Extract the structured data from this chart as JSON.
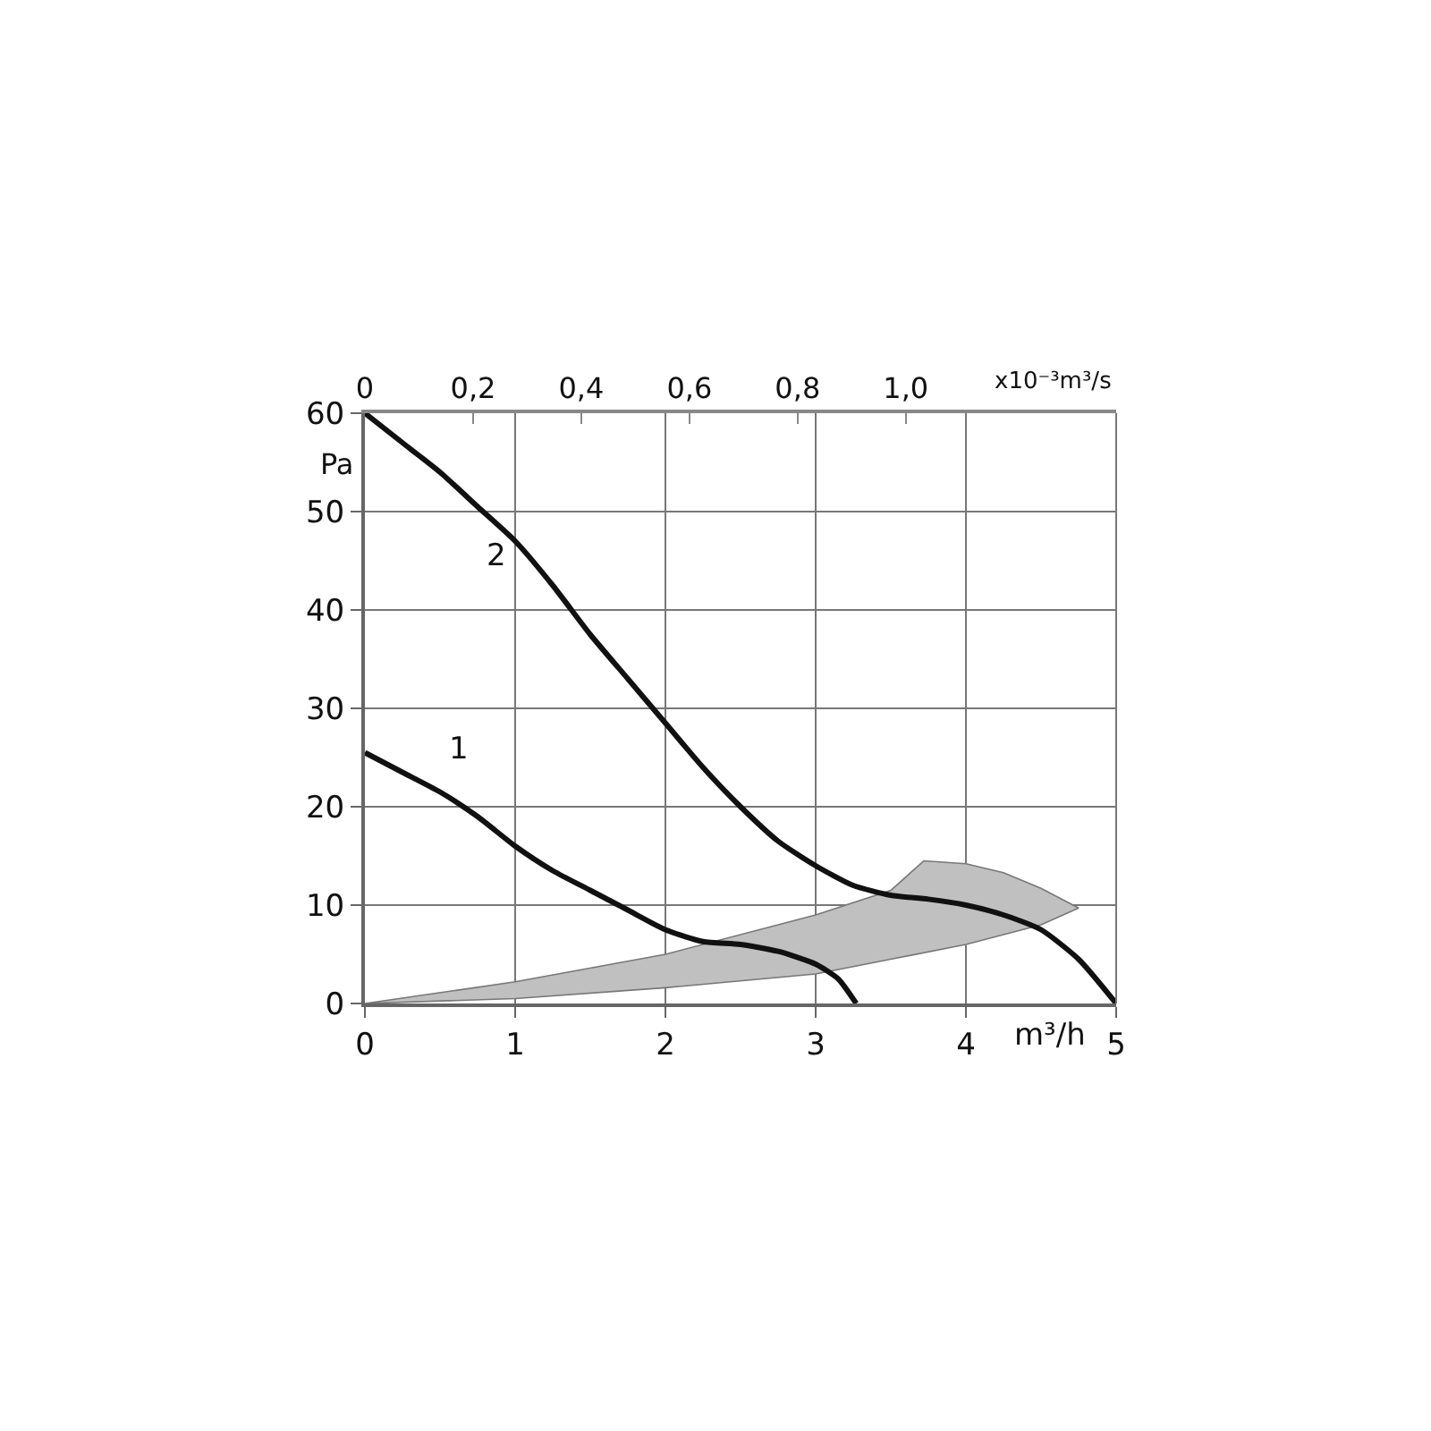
{
  "chart_data": {
    "type": "line",
    "xlabel": "m³/h",
    "ylabel": "Pa",
    "x2label": "x10⁻³m³/s",
    "xlim": [
      0,
      5
    ],
    "xticks": [
      0,
      1,
      2,
      3,
      4,
      5
    ],
    "ylim": [
      0,
      60
    ],
    "yticks": [
      0,
      10,
      20,
      30,
      40,
      50,
      60
    ],
    "x2lim": [
      0,
      1.389
    ],
    "x2ticks": [
      0,
      {
        "value": 0.2,
        "label": "0,2"
      },
      {
        "value": 0.4,
        "label": "0,4"
      },
      {
        "value": 0.6,
        "label": "0,6"
      },
      {
        "value": 0.8,
        "label": "0,8"
      },
      {
        "value": 1.0,
        "label": "1,0"
      }
    ],
    "grid": true,
    "legend": false,
    "marker": "none",
    "line_style": "solid",
    "series": [
      {
        "type": "area",
        "color": "#c0c0c0",
        "x": [
          0,
          1,
          2,
          3,
          3.5,
          3.72,
          4,
          4.25,
          4.5,
          4.75,
          4.5,
          4,
          3.5,
          3,
          2,
          1,
          0
        ],
        "values": [
          0,
          2.2,
          5,
          9,
          11.5,
          14.5,
          14.2,
          13.3,
          11.7,
          9.7,
          8,
          6,
          4.5,
          3,
          1.6,
          0.5,
          0
        ]
      },
      {
        "name": "1",
        "color": "#111111",
        "x": [
          0,
          0.25,
          0.5,
          0.75,
          1,
          1.25,
          1.5,
          1.75,
          2,
          2.25,
          2.5,
          2.75,
          3,
          3.15,
          3.27
        ],
        "values": [
          25.5,
          23.5,
          21.5,
          19,
          16,
          13.5,
          11.5,
          9.5,
          7.5,
          6.3,
          6,
          5.3,
          4,
          2.5,
          0
        ]
      },
      {
        "name": "2",
        "color": "#111111",
        "x": [
          0,
          0.25,
          0.5,
          0.75,
          1,
          1.25,
          1.5,
          1.75,
          2,
          2.25,
          2.5,
          2.75,
          3,
          3.25,
          3.5,
          3.75,
          4,
          4.25,
          4.5,
          4.75,
          5
        ],
        "values": [
          60,
          57,
          54,
          50.5,
          47,
          42.5,
          37.5,
          33,
          28.5,
          24,
          20,
          16.5,
          14,
          12,
          11,
          10.6,
          10,
          9,
          7.5,
          4.5,
          0
        ]
      }
    ]
  }
}
